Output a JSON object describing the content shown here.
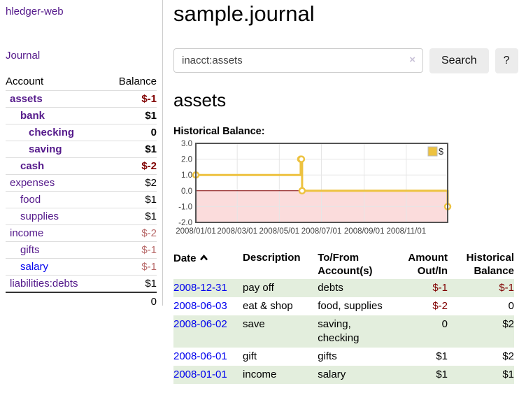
{
  "colors": {
    "link_purple": "#551a8b",
    "link_blue": "#0000ee",
    "negative_red": "#800000",
    "negative_muted_rose": "#b86a6a",
    "series_yellow": "#edc240",
    "negative_region_pink": "#fbdcdc",
    "zero_line_dark_red": "#800000",
    "row_shade_green": "#e3eedd"
  },
  "app": {
    "title": "hledger-web"
  },
  "nav": {
    "journal": "Journal"
  },
  "sidebar": {
    "header": {
      "account": "Account",
      "balance": "Balance"
    },
    "accounts": [
      {
        "name": "assets",
        "balance": "$-1",
        "depth": 1,
        "bold": true,
        "balance_color": "red"
      },
      {
        "name": "bank",
        "balance": "$1",
        "depth": 2,
        "bold": true,
        "balance_color": "black"
      },
      {
        "name": "checking",
        "balance": "0",
        "depth": 3,
        "bold": true,
        "balance_color": "black"
      },
      {
        "name": "saving",
        "balance": "$1",
        "depth": 3,
        "bold": true,
        "balance_color": "black"
      },
      {
        "name": "cash",
        "balance": "$-2",
        "depth": 2,
        "bold": true,
        "balance_color": "red"
      },
      {
        "name": "expenses",
        "balance": "$2",
        "depth": 1,
        "bold": false,
        "balance_color": "black"
      },
      {
        "name": "food",
        "balance": "$1",
        "depth": 2,
        "bold": false,
        "balance_color": "black"
      },
      {
        "name": "supplies",
        "balance": "$1",
        "depth": 2,
        "bold": false,
        "balance_color": "black"
      },
      {
        "name": "income",
        "balance": "$-2",
        "depth": 1,
        "bold": false,
        "balance_color": "rose"
      },
      {
        "name": "gifts",
        "balance": "$-1",
        "depth": 2,
        "bold": false,
        "balance_color": "rose"
      },
      {
        "name": "salary",
        "balance": "$-1",
        "depth": 2,
        "bold": false,
        "balance_color": "rose",
        "link_color": "blue"
      },
      {
        "name": "liabilities:debts",
        "balance": "$1",
        "depth": 1,
        "bold": false,
        "balance_color": "black"
      }
    ],
    "total": "0"
  },
  "main": {
    "title": "sample.journal",
    "search": {
      "value": "inacct:assets",
      "clear_icon": "×",
      "button_label": "Search",
      "help_label": "?"
    },
    "account_heading": "assets",
    "chart_title": "Historical Balance:"
  },
  "chart_data": {
    "type": "line",
    "step": true,
    "title": "Historical Balance",
    "legend": [
      {
        "label": "$",
        "color": "#edc240"
      }
    ],
    "legend_position": "top-right",
    "x_type": "date",
    "points": [
      {
        "date": "2008-01-01",
        "value": 1
      },
      {
        "date": "2008-06-01",
        "value": 2
      },
      {
        "date": "2008-06-02",
        "value": 2
      },
      {
        "date": "2008-06-03",
        "value": 0
      },
      {
        "date": "2008-12-31",
        "value": -1
      }
    ],
    "ylim": [
      -2,
      3
    ],
    "yticks": [
      "3.0",
      "2.0",
      "1.0",
      "0.0",
      "-1.0",
      "-2.0"
    ],
    "xticks": [
      "2008/01/01",
      "2008/03/01",
      "2008/05/01",
      "2008/07/01",
      "2008/09/01",
      "2008/11/01"
    ],
    "grid": true,
    "negative_region_below_zero": true
  },
  "register": {
    "headers": {
      "date": "Date",
      "description": "Description",
      "accounts": "To/From\nAccount(s)",
      "amount": "Amount\nOut/In",
      "balance": "Historical\nBalance"
    },
    "rows": [
      {
        "date": "2008-12-31",
        "description": "pay off",
        "accounts": "debts",
        "amount": "$-1",
        "balance": "$-1"
      },
      {
        "date": "2008-06-03",
        "description": "eat & shop",
        "accounts": "food, supplies",
        "amount": "$-2",
        "balance": "0"
      },
      {
        "date": "2008-06-02",
        "description": "save",
        "accounts": "saving, checking",
        "amount": "0",
        "balance": "$2"
      },
      {
        "date": "2008-06-01",
        "description": "gift",
        "accounts": "gifts",
        "amount": "$1",
        "balance": "$2"
      },
      {
        "date": "2008-01-01",
        "description": "income",
        "accounts": "salary",
        "amount": "$1",
        "balance": "$1"
      }
    ]
  }
}
